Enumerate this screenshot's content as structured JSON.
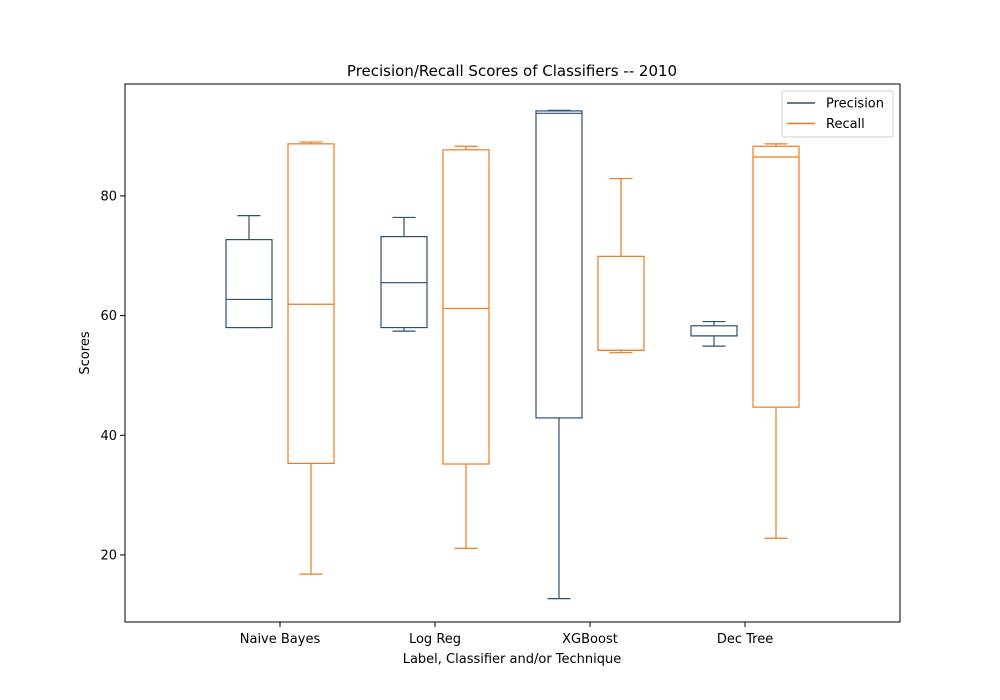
{
  "chart_data": {
    "type": "box",
    "title": "Precision/Recall Scores of Classifiers -- 2010",
    "xlabel": "Label, Classifier and/or Technique",
    "ylabel": "Scores",
    "ylim": [
      8.8,
      98.7
    ],
    "yticks": [
      20,
      40,
      60,
      80
    ],
    "categories": [
      "Naive Bayes",
      "Log Reg",
      "XGBoost",
      "Dec Tree"
    ],
    "legend": {
      "placement": "top-right",
      "entries": [
        "Precision",
        "Recall"
      ]
    },
    "grid": false,
    "series": [
      {
        "name": "Precision",
        "color": "#2b5072",
        "boxes": [
          {
            "whislo": 58.0,
            "q1": 58.0,
            "med": 62.7,
            "q3": 72.7,
            "whishi": 76.7
          },
          {
            "whislo": 57.4,
            "q1": 58.0,
            "med": 65.5,
            "q3": 73.2,
            "whishi": 76.4
          },
          {
            "whislo": 12.7,
            "q1": 42.9,
            "med": 93.8,
            "q3": 94.2,
            "whishi": 94.3
          },
          {
            "whislo": 54.9,
            "q1": 56.6,
            "med": 56.6,
            "q3": 58.3,
            "whishi": 59.0
          }
        ]
      },
      {
        "name": "Recall",
        "color": "#ee7a1d",
        "boxes": [
          {
            "whislo": 16.8,
            "q1": 35.3,
            "med": 61.9,
            "q3": 88.7,
            "whishi": 89.0
          },
          {
            "whislo": 21.1,
            "q1": 35.2,
            "med": 61.2,
            "q3": 87.7,
            "whishi": 88.3
          },
          {
            "whislo": 53.8,
            "q1": 54.2,
            "med": 54.2,
            "q3": 69.9,
            "whishi": 82.9
          },
          {
            "whislo": 22.8,
            "q1": 44.7,
            "med": 86.5,
            "q3": 88.3,
            "whishi": 88.7
          }
        ]
      }
    ]
  }
}
